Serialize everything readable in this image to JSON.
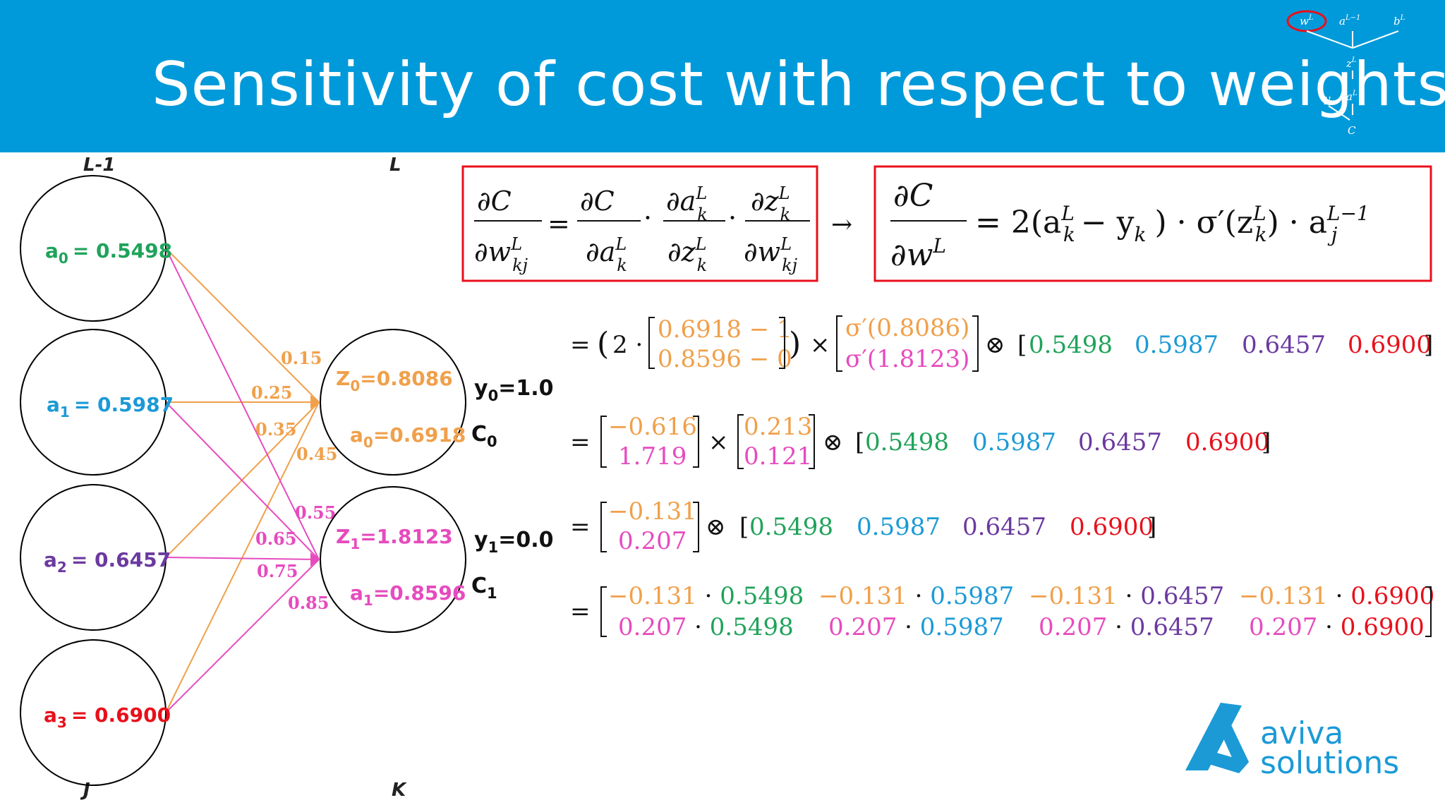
{
  "header": {
    "title": "Sensitivity of cost with respect to weights",
    "mini_diagram": {
      "wL": "w",
      "wL_sup": "L",
      "aL1": "a",
      "aL1_sup": "L−1",
      "bL": "b",
      "bL_sup": "L",
      "zL": "z",
      "zL_sup": "L",
      "y": "y",
      "aL": "a",
      "aL_sup": "L",
      "c": "C"
    }
  },
  "colors": {
    "banner": "#009ada",
    "orange": "#f0a04b",
    "pink": "#e64bbe",
    "green": "#1fa35a",
    "blue": "#1b9ad6",
    "purple": "#6b3aa0",
    "red": "#e8101b",
    "box_red": "#e8101b"
  },
  "network": {
    "layer_left_label": "L-1",
    "layer_right_label": "L",
    "left_index": "J",
    "right_index": "K",
    "inputs": [
      {
        "name": "a",
        "sub": "0",
        "value": "= 0.5498",
        "color": "#1fa35a"
      },
      {
        "name": "a",
        "sub": "1",
        "value": "= 0.5987",
        "color": "#1b9ad6"
      },
      {
        "name": "a",
        "sub": "2",
        "value": "= 0.6457",
        "color": "#6b3aa0"
      },
      {
        "name": "a",
        "sub": "3",
        "value": "= 0.6900",
        "color": "#e8101b"
      }
    ],
    "weights_orange": [
      "0.15",
      "0.25",
      "0.35",
      "0.45"
    ],
    "weights_pink": [
      "0.55",
      "0.65",
      "0.75",
      "0.85"
    ],
    "outputs": [
      {
        "z_name": "Z",
        "z_sub": "0",
        "z_value": "=0.8086",
        "a_name": "a",
        "a_sub": "0",
        "a_value": "=0.6918",
        "y_name": "y",
        "y_sub": "0",
        "y_value": "=1.0",
        "c_name": "C",
        "c_sub": "0"
      },
      {
        "z_name": "Z",
        "z_sub": "1",
        "z_value": "=1.8123",
        "a_name": "a",
        "a_sub": "1",
        "a_value": "=0.8596",
        "y_name": "y",
        "y_sub": "1",
        "y_value": "=0.0",
        "c_name": "C",
        "c_sub": "1"
      }
    ]
  },
  "formulas": {
    "chain": {
      "lhs_num": "∂C",
      "lhs_den": "∂w",
      "t1_num": "∂C",
      "t1_den": "∂a",
      "t2_num": "∂a",
      "t2_den": "∂z",
      "t3_num": "∂z",
      "t3_den": "∂w",
      "sup": "L",
      "sub_kj": "kj",
      "sub_k": "k",
      "arrow": "→"
    },
    "result": {
      "num": "∂C",
      "den": "∂w",
      "rhs_a": "= 2(a",
      "rhs_b": "− y",
      "rhs_c": ") · σ′(z",
      "rhs_d": ") · a",
      "sup_L": "L",
      "sub_k": "k",
      "sub_j": "j",
      "sup_L1": "L−1"
    },
    "step1": {
      "eq": "= ",
      "two": "(2 ·",
      "top": "0.6918 − 1",
      "bottom": "0.8596 − 0",
      "close": ")",
      "times": "×",
      "sig_top": "σ′(0.8086)",
      "sig_bottom": "σ′(1.8123)",
      "otimes": "⊗",
      "vec": [
        "0.5498",
        "0.5987",
        "0.6457",
        "0.6900"
      ]
    },
    "step2": {
      "eq": "=",
      "top": "−0.616",
      "bottom": "1.719",
      "times": "×",
      "top2": "0.213",
      "bottom2": "0.121",
      "otimes": "⊗",
      "vec": [
        "0.5498",
        "0.5987",
        "0.6457",
        "0.6900"
      ]
    },
    "step3": {
      "eq": "=",
      "top": "−0.131",
      "bottom": "0.207",
      "otimes": "⊗",
      "vec": [
        "0.5498",
        "0.5987",
        "0.6457",
        "0.6900"
      ]
    },
    "step4": {
      "eq": "=",
      "top": [
        {
          "a": "−0.131",
          "dot": " · ",
          "b": "0.5498"
        },
        {
          "a": "−0.131",
          "dot": " · ",
          "b": "0.5987"
        },
        {
          "a": "−0.131",
          "dot": " · ",
          "b": "0.6457"
        },
        {
          "a": "−0.131",
          "dot": " · ",
          "b": "0.6900"
        }
      ],
      "bottom": [
        {
          "a": "0.207",
          "dot": " · ",
          "b": "0.5498"
        },
        {
          "a": "0.207",
          "dot": " · ",
          "b": "0.5987"
        },
        {
          "a": "0.207",
          "dot": " · ",
          "b": "0.6457"
        },
        {
          "a": "0.207",
          "dot": " · ",
          "b": "0.6900"
        }
      ]
    }
  },
  "logo": {
    "line1": "aviva",
    "line2": "solutions",
    "color": "#1b9ad6"
  }
}
